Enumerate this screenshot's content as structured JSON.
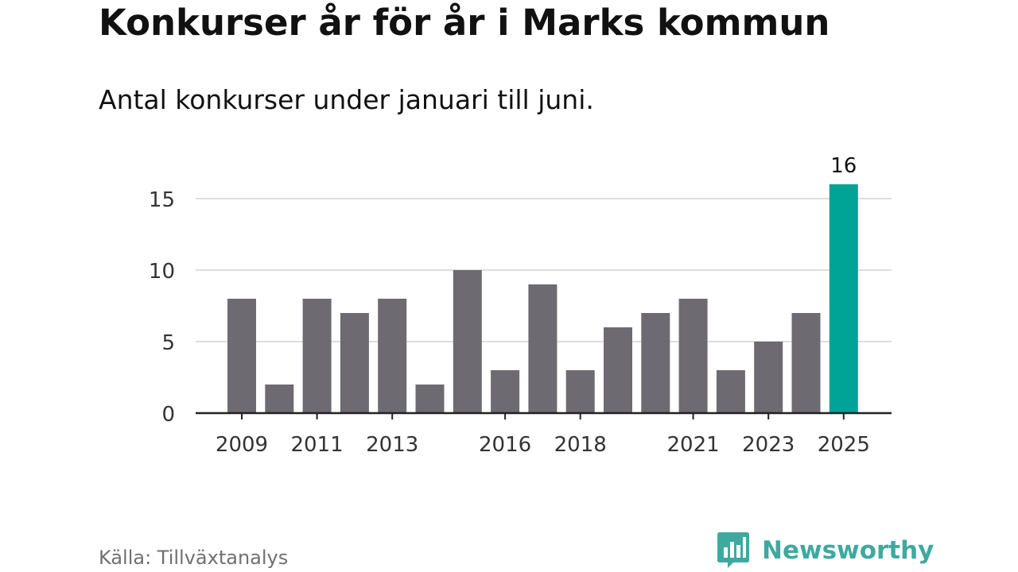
{
  "header": {
    "title": "Konkurser år för år i Marks kommun",
    "subtitle": "Antal konkurser under januari till juni."
  },
  "footer": {
    "source": "Källa: Tillväxtanalys",
    "brand": "Newsworthy",
    "brand_icon": "newsworthy-logo-icon"
  },
  "colors": {
    "bar": "#6d6b71",
    "highlight": "#00a398",
    "grid": "#dddddd",
    "axis": "#222222",
    "brand": "#3fa9a0"
  },
  "chart_data": {
    "type": "bar",
    "title": "Konkurser år för år i Marks kommun",
    "subtitle": "Antal konkurser under januari till juni.",
    "categories": [
      "2009",
      "2010",
      "2011",
      "2012",
      "2013",
      "2014",
      "2015",
      "2016",
      "2017",
      "2018",
      "2019",
      "2020",
      "2021",
      "2022",
      "2023",
      "2024",
      "2025"
    ],
    "values": [
      8,
      2,
      8,
      7,
      8,
      2,
      10,
      3,
      9,
      3,
      6,
      7,
      8,
      3,
      5,
      7,
      16
    ],
    "x_tick_labels": [
      "2009",
      "2011",
      "2013",
      "2016",
      "2018",
      "2021",
      "2023",
      "2025"
    ],
    "y_ticks": [
      0,
      5,
      10,
      15
    ],
    "ylim": [
      0,
      16
    ],
    "grid": true,
    "highlight_category": "2025",
    "data_labels": [
      {
        "category": "2025",
        "text": "16"
      }
    ],
    "xlabel": "",
    "ylabel": ""
  }
}
